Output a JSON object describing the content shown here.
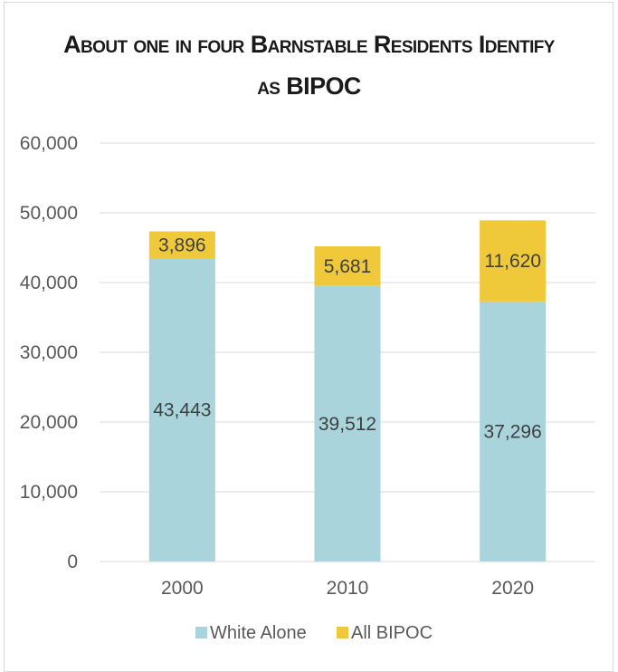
{
  "chart_data": {
    "type": "bar",
    "stacked": true,
    "title_line1": "About one in four Barnstable Residents Identify",
    "title_line2": "as BIPOC",
    "categories": [
      "2000",
      "2010",
      "2020"
    ],
    "series": [
      {
        "name": "White Alone",
        "values": [
          43443,
          39512,
          37296
        ],
        "color": "#a9d4db"
      },
      {
        "name": "All BIPOC",
        "values": [
          3896,
          5681,
          11620
        ],
        "color": "#efc93a"
      }
    ],
    "ylim": [
      0,
      60000
    ],
    "yticks": [
      "0",
      "10,000",
      "20,000",
      "30,000",
      "40,000",
      "50,000",
      "60,000"
    ],
    "ytick_values": [
      0,
      10000,
      20000,
      30000,
      40000,
      50000,
      60000
    ],
    "data_labels": [
      [
        "43,443",
        "39,512",
        "37,296"
      ],
      [
        "3,896",
        "5,681",
        "11,620"
      ]
    ],
    "grid": true,
    "legend": "bottom"
  }
}
